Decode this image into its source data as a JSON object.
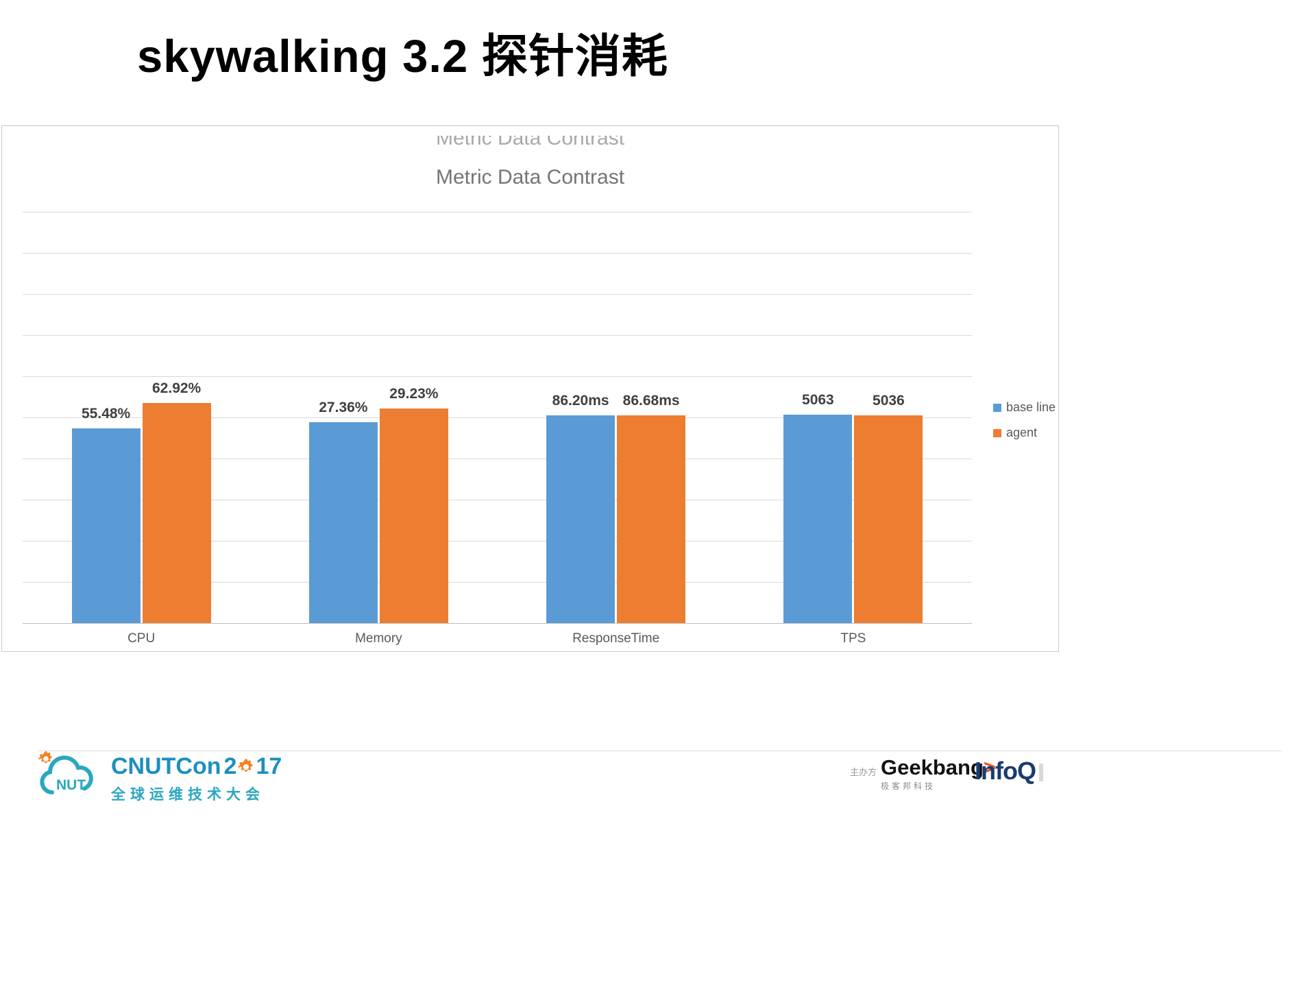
{
  "slide": {
    "title": "skywalking 3.2 探针消耗"
  },
  "chart_data": {
    "type": "bar",
    "title": "Metric Data Contrast",
    "categories": [
      "CPU",
      "Memory",
      "ResponseTime",
      "TPS"
    ],
    "series": [
      {
        "name": "base line",
        "color": "#5B9BD5",
        "values": [
          55.48,
          27.36,
          86.2,
          5063
        ],
        "labels": [
          "55.48%",
          "27.36%",
          "86.20ms",
          "5063"
        ]
      },
      {
        "name": "agent",
        "color": "#ED7D31",
        "values": [
          62.92,
          29.23,
          86.68,
          5036
        ],
        "labels": [
          "62.92%",
          "29.23%",
          "86.68ms",
          "5036"
        ]
      }
    ],
    "display_height_fractions": [
      [
        0.473,
        0.489,
        0.505,
        0.507
      ],
      [
        0.535,
        0.522,
        0.505,
        0.505
      ]
    ],
    "gridline_count": 11,
    "grid": true,
    "legend_position": "right",
    "ylim_note": "per-metric scaling as displayed"
  },
  "footer": {
    "cnutcon": {
      "cloud_text": "NUT",
      "brand": "CNUTCon",
      "year_before_gear": "2",
      "year_after_gear": "17",
      "tagline": "全球运维技术大会"
    },
    "organizer_label": "主办方",
    "geekbang": {
      "text_bold": "Geek",
      "text_rest": "bang",
      "arrow": ">",
      "subtext": "极客邦科技"
    },
    "infoq": {
      "text": "InfoQ"
    }
  },
  "colors": {
    "baseline_blue": "#5B9BD5",
    "agent_orange": "#ED7D31",
    "brand_teal": "#2AA7C0",
    "brand_blue": "#1D8FBE",
    "gear_orange": "#F5821F",
    "infoq_navy": "#1A3C6E"
  }
}
